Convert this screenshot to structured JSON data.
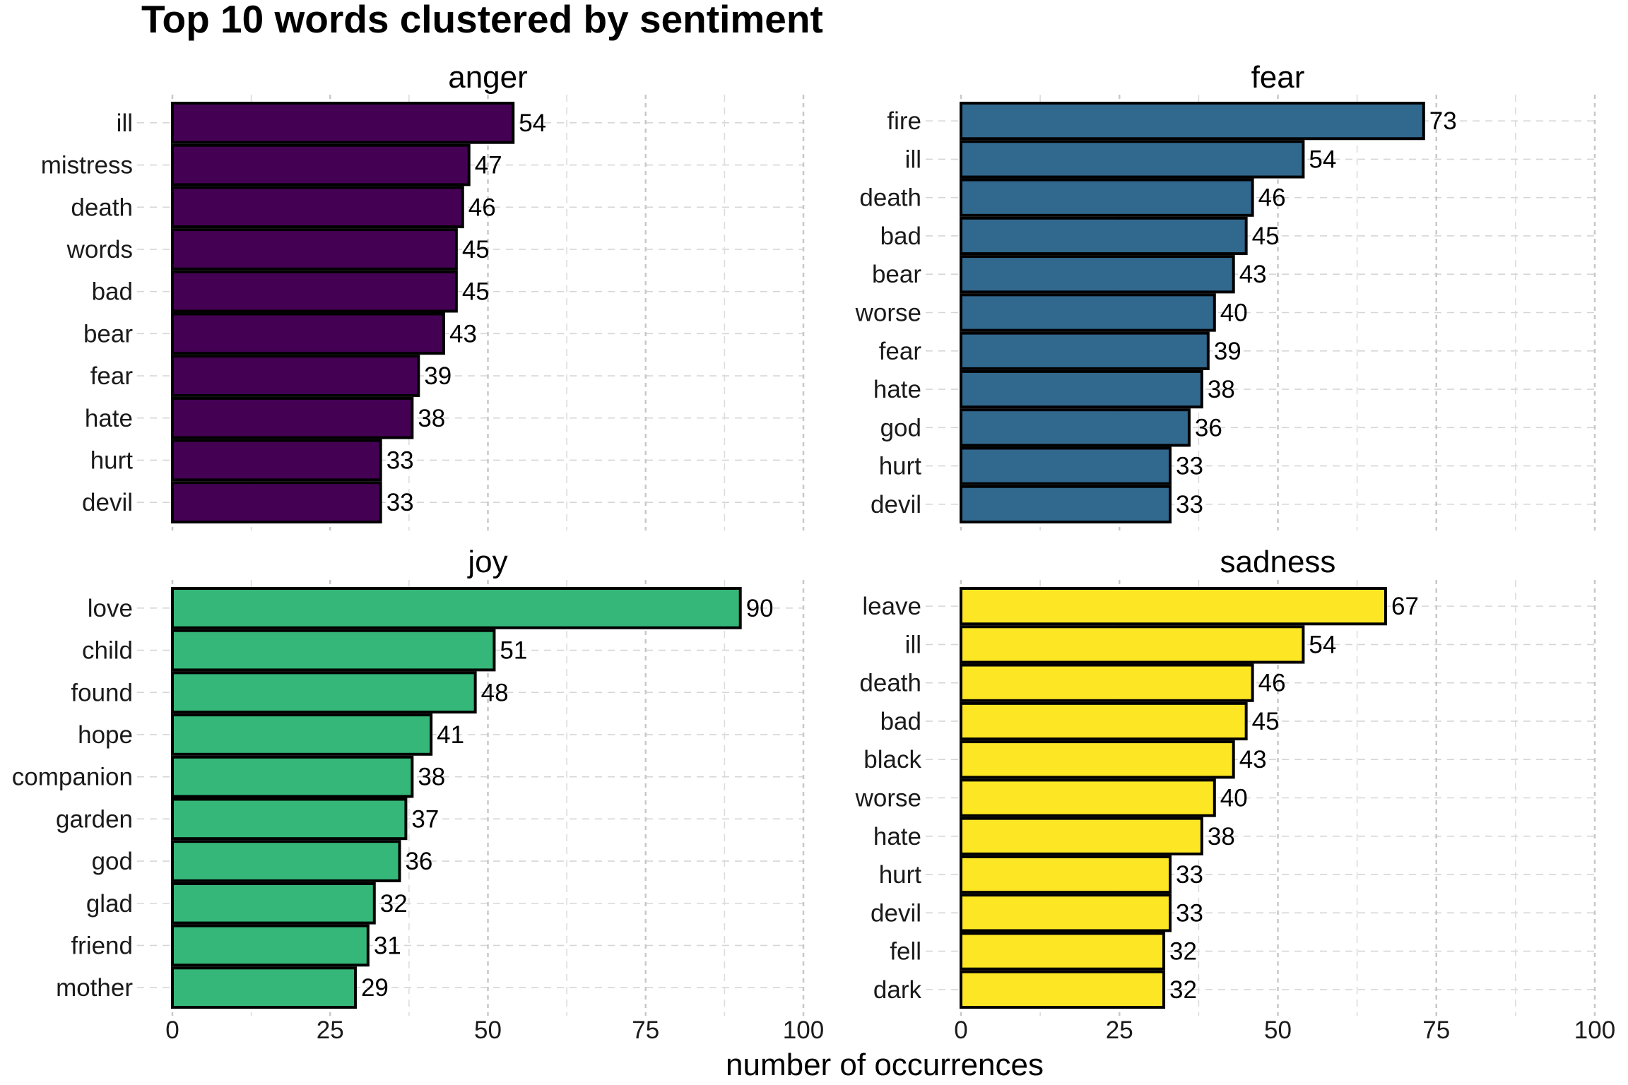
{
  "chart_data": {
    "type": "bar",
    "orientation": "horizontal",
    "title": "Top 10 words clustered by sentiment",
    "xlabel": "number of occurrences",
    "ylabel": "",
    "xlim": [
      0,
      100
    ],
    "x_ticks": [
      "0",
      "25",
      "50",
      "75",
      "100"
    ],
    "grid": true,
    "legend": "none",
    "panels": [
      {
        "name": "anger",
        "color": "#440154",
        "categories": [
          "ill",
          "mistress",
          "death",
          "words",
          "bad",
          "bear",
          "fear",
          "hate",
          "hurt",
          "devil"
        ],
        "values": [
          54,
          47,
          46,
          45,
          45,
          43,
          39,
          38,
          33,
          33
        ]
      },
      {
        "name": "fear",
        "color": "#31688E",
        "categories": [
          "fire",
          "ill",
          "death",
          "bad",
          "bear",
          "worse",
          "fear",
          "hate",
          "god",
          "hurt",
          "devil"
        ],
        "values": [
          73,
          54,
          46,
          45,
          43,
          40,
          39,
          38,
          36,
          33,
          33
        ]
      },
      {
        "name": "joy",
        "color": "#35B779",
        "categories": [
          "love",
          "child",
          "found",
          "hope",
          "companion",
          "garden",
          "god",
          "glad",
          "friend",
          "mother"
        ],
        "values": [
          90,
          51,
          48,
          41,
          38,
          37,
          36,
          32,
          31,
          29
        ]
      },
      {
        "name": "sadness",
        "color": "#FDE725",
        "categories": [
          "leave",
          "ill",
          "death",
          "bad",
          "black",
          "worse",
          "hate",
          "hurt",
          "devil",
          "fell",
          "dark"
        ],
        "values": [
          67,
          54,
          46,
          45,
          43,
          40,
          38,
          33,
          33,
          32,
          32
        ]
      }
    ]
  }
}
